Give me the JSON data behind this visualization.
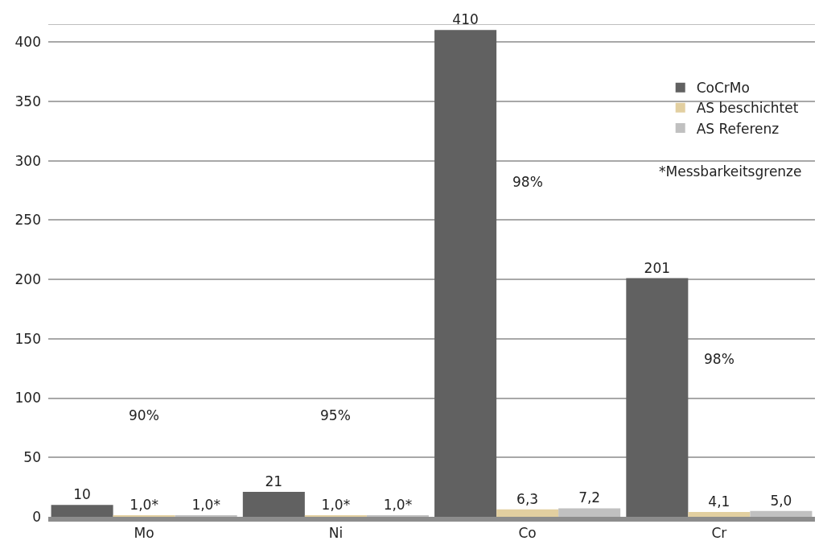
{
  "chart_data": {
    "type": "bar",
    "categories": [
      "Mo",
      "Ni",
      "Co",
      "Cr"
    ],
    "series": [
      {
        "name": "CoCrMo",
        "color": "#616161",
        "values": [
          10,
          21,
          410,
          201
        ],
        "value_labels": [
          "10",
          "21",
          "410",
          "201"
        ]
      },
      {
        "name": "AS beschichtet",
        "color": "#e2cfa0",
        "values": [
          1.0,
          1.0,
          6.3,
          4.1
        ],
        "value_labels": [
          "1,0*",
          "1,0*",
          "6,3",
          "4,1"
        ]
      },
      {
        "name": "AS Referenz",
        "color": "#c0c0c0",
        "values": [
          1.0,
          1.0,
          7.2,
          5.0
        ],
        "value_labels": [
          "1,0*",
          "1,0*",
          "7,2",
          "5,0"
        ]
      }
    ],
    "ylim": [
      0,
      415
    ],
    "yticks": [
      0,
      50,
      100,
      150,
      200,
      250,
      300,
      350,
      400
    ],
    "grid": "y",
    "legend": "top right",
    "annotations": [
      "90%",
      "95%",
      "98%",
      "98%",
      "*Messbarkeitsgrenze"
    ]
  }
}
